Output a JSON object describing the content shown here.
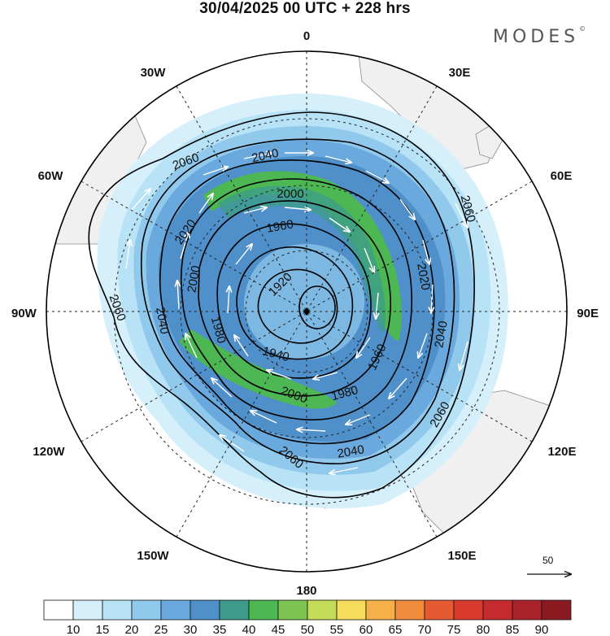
{
  "title": "30/04/2025  00 UTC  + 228 hrs",
  "brand": {
    "name": "MODES",
    "mark": "©"
  },
  "longitude_labels": {
    "lon_0": "0",
    "lon_30e": "30E",
    "lon_60e": "60E",
    "lon_90e": "90E",
    "lon_120e": "120E",
    "lon_150e": "150E",
    "lon_180": "180",
    "lon_150w": "150W",
    "lon_120w": "120W",
    "lon_90w": "90W",
    "lon_60w": "60W",
    "lon_30w": "30W"
  },
  "contour_labels": {
    "c2060_nw": "2060",
    "c2040_n": "2040",
    "c2000_n": "2000",
    "c2060_ne": "2060",
    "c2020_nw": "2020",
    "c1960_n": "1960",
    "c2000_w": "2000",
    "c2020_e": "2020",
    "c1920_c": "1920",
    "c2060_w": "2060",
    "c2040_w": "2040",
    "c1980_w": "1980",
    "c1940_c": "1940",
    "c1960_e": "1960",
    "c2040_e": "2040",
    "c1980_s": "1980",
    "c2000_s": "2000",
    "c2060_se": "2060",
    "c2040_s": "2040",
    "c2060_s": "2060"
  },
  "reference_vector": {
    "label": "50"
  },
  "colorbar": {
    "ticks": [
      "10",
      "15",
      "20",
      "25",
      "30",
      "35",
      "40",
      "45",
      "50",
      "55",
      "60",
      "65",
      "70",
      "75",
      "80",
      "85",
      "90"
    ],
    "colors": [
      "#ffffff",
      "#d6f0fb",
      "#b8e2f6",
      "#91c9ec",
      "#6aa9dd",
      "#4f8fca",
      "#3f9c8a",
      "#4cb753",
      "#7cc552",
      "#c4dc5a",
      "#f5dc5a",
      "#f5b04a",
      "#f08c3c",
      "#e55a30",
      "#d93a2e",
      "#c42a2e",
      "#a8222a",
      "#8a1a20"
    ]
  },
  "colors": {
    "land": "#f0f0f0",
    "coast": "#8a8a8a",
    "contour": "#000000",
    "grid": "#222222",
    "wind_arrow": "#ffffff"
  }
}
